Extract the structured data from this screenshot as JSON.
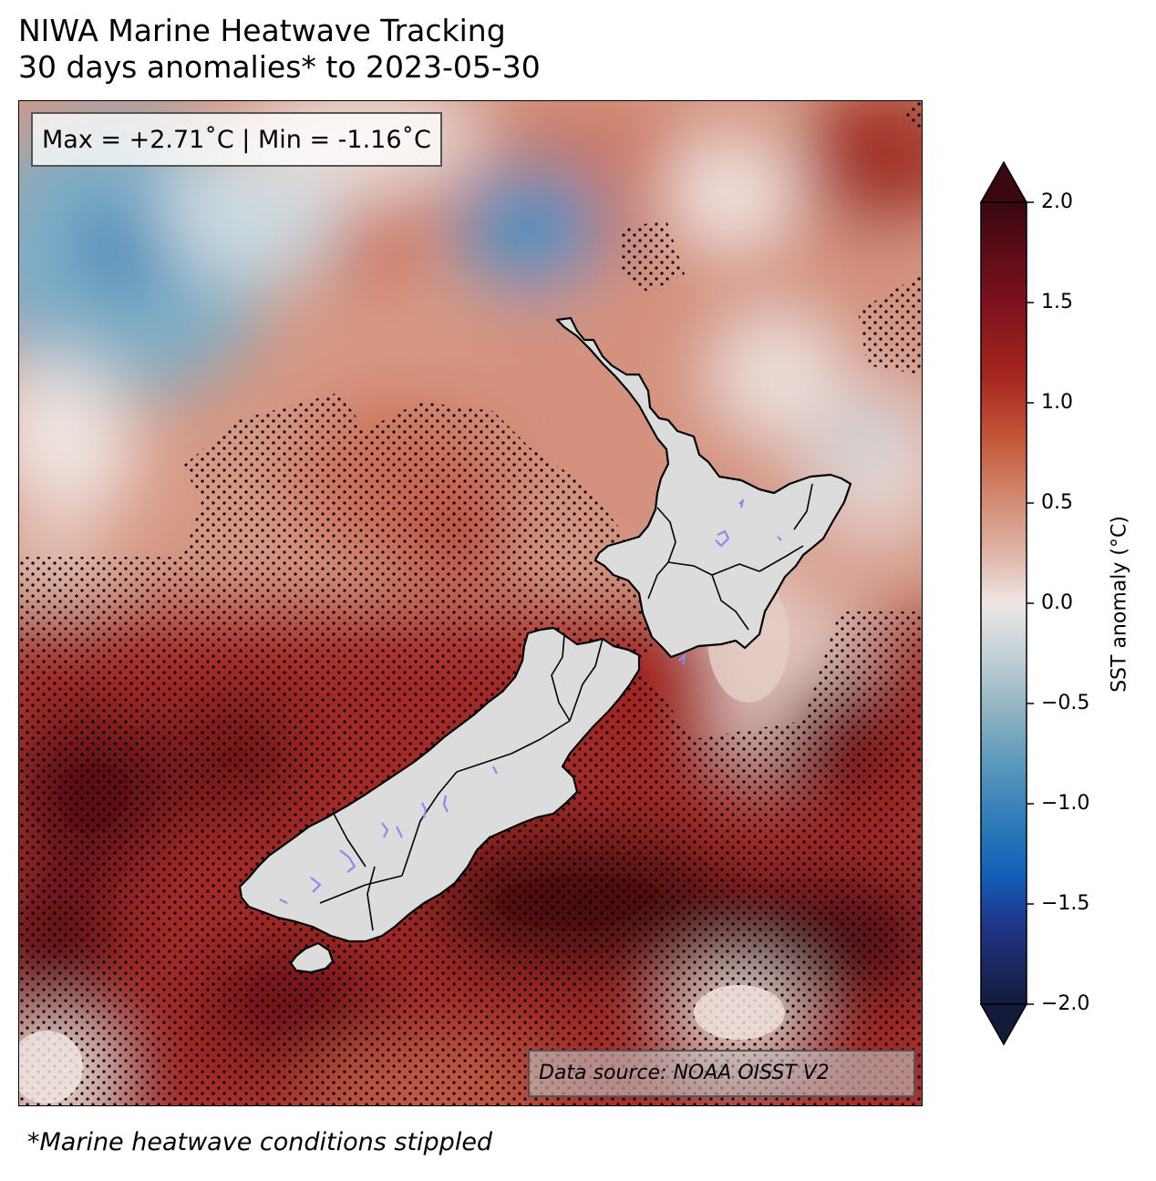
{
  "title": {
    "line1": "NIWA Marine Heatwave Tracking",
    "line2": "30 days anomalies* to 2023-05-30"
  },
  "stats": {
    "text": "Max = +2.71˚C | Min = -1.16˚C",
    "max": 2.71,
    "min": -1.16,
    "units": "˚C"
  },
  "data_source": "Data source: NOAA OISST V2",
  "footnote": "*Marine heatwave conditions stippled",
  "colorbar": {
    "label": "SST anomaly (°C)",
    "range": [
      -2.0,
      2.0
    ],
    "extend": "both",
    "ticks": [
      "2.0",
      "1.5",
      "1.0",
      "0.5",
      "0.0",
      "−0.5",
      "−1.0",
      "−1.5",
      "−2.0"
    ],
    "colors": {
      "high_end": "#3b0810",
      "warm": "#b82f2a",
      "mild": "#d99a86",
      "neutral": "#efe6e4",
      "cool": "#8fb3c4",
      "cold": "#2b6ea8",
      "low_end": "#131b3b"
    }
  },
  "map": {
    "land_color": "#dcdcdc",
    "lake_color": "#8a8af0",
    "stipple_color": "#000000",
    "regions": [
      "North Island",
      "South Island",
      "Stewart Island"
    ]
  }
}
